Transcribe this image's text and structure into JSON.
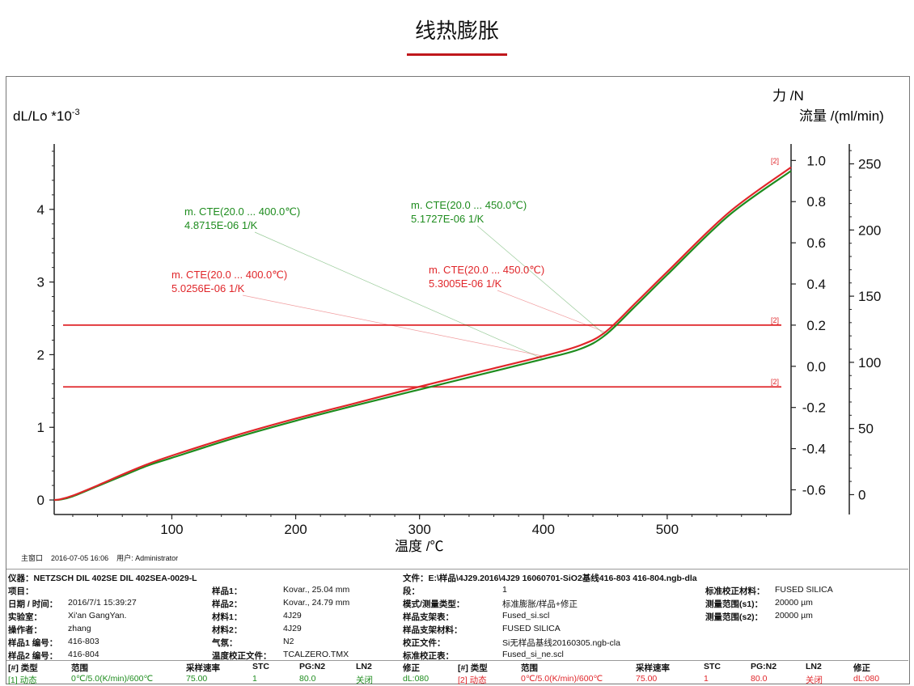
{
  "page": {
    "title": "线热膨胀"
  },
  "chart_data": {
    "type": "line",
    "ylabel_left": "dL/Lo *10",
    "ylabel_left_exp": "-3",
    "ylabel_right1": "力 /N",
    "ylabel_right2": "流量 /(ml/min)",
    "xlabel": "温度 /℃",
    "xlim": [
      5,
      600
    ],
    "ylim_left": [
      -0.2,
      4.9
    ],
    "ylim_force": [
      -0.72,
      1.08
    ],
    "ylim_flow": [
      -15,
      265
    ],
    "x_ticks": [
      "100",
      "200",
      "300",
      "400",
      "500"
    ],
    "y_ticks_left": [
      "0",
      "1",
      "2",
      "3",
      "4"
    ],
    "y_ticks_force": [
      "-0.6",
      "-0.4",
      "-0.2",
      "0.0",
      "0.2",
      "0.4",
      "0.6",
      "0.8",
      "1.0"
    ],
    "y_ticks_flow": [
      "0",
      "50",
      "100",
      "150",
      "200",
      "250"
    ],
    "grid": false,
    "series": [
      {
        "color": "#e0262a",
        "x": [
          5,
          10,
          20,
          40,
          60,
          80,
          100,
          150,
          200,
          250,
          300,
          350,
          400,
          430,
          450,
          475,
          500,
          550,
          600
        ],
        "y": [
          0,
          0.01,
          0.06,
          0.2,
          0.35,
          0.49,
          0.61,
          0.88,
          1.12,
          1.34,
          1.56,
          1.77,
          1.98,
          2.13,
          2.31,
          2.72,
          3.14,
          3.96,
          4.58
        ]
      },
      {
        "color": "#1e8c1e",
        "x": [
          5,
          10,
          20,
          40,
          60,
          80,
          100,
          150,
          200,
          250,
          300,
          350,
          400,
          430,
          450,
          475,
          500,
          550,
          600
        ],
        "y": [
          0,
          0.005,
          0.05,
          0.19,
          0.33,
          0.47,
          0.58,
          0.85,
          1.09,
          1.31,
          1.52,
          1.73,
          1.94,
          2.08,
          2.27,
          2.68,
          3.1,
          3.92,
          4.53
        ]
      }
    ],
    "horizontal_lines": [
      {
        "color": "#e0262a",
        "force": 0.2,
        "tag": "[2]"
      },
      {
        "color": "#e0262a",
        "force": -0.1,
        "tag": "[2]"
      }
    ],
    "curve_tag": "[2]",
    "annotations": [
      {
        "color": "#1e8c1e",
        "line1": "m. CTE(20.0 ... 400.0℃)",
        "line2": "4.8715E-06 1/K",
        "target_x": 400
      },
      {
        "color": "#1e8c1e",
        "line1": "m. CTE(20.0 ... 450.0℃)",
        "line2": "5.1727E-06 1/K",
        "target_x": 450
      },
      {
        "color": "#e0262a",
        "line1": "m. CTE(20.0 ... 400.0℃)",
        "line2": "5.0256E-06 1/K",
        "target_x": 400
      },
      {
        "color": "#e0262a",
        "line1": "m. CTE(20.0 ... 450.0℃)",
        "line2": "5.3005E-06 1/K",
        "target_x": 450
      }
    ]
  },
  "footer": {
    "window": "主窗口",
    "datetime": "2016-07-05 16:06",
    "user": "用户: Administrator",
    "instrument": "仪器：NETZSCH DIL 402SE DIL 402SEA-0029-L",
    "file": "文件：E:\\样品\\4J29.2016\\4J29 16060701-SiO2基线416-803 416-804.ngb-dla",
    "rows": [
      [
        "项目：",
        "",
        "样品1：",
        "Kovar., 25.04 mm",
        "段：",
        "1",
        "标准校正材料：",
        "FUSED SILICA"
      ],
      [
        "日期 / 时间：",
        "2016/7/1 15:39:27",
        "样品2：",
        "Kovar., 24.79 mm",
        "模式/测量类型：",
        "标准膨胀/样品+修正",
        "测量范围(s1)：",
        "20000 µm"
      ],
      [
        "实验室：",
        "Xi'an GangYan.",
        "材料1：",
        "4J29",
        "样品支架表：",
        "Fused_si.scl",
        "测量范围(s2)：",
        "20000 µm"
      ],
      [
        "操作者：",
        "zhang",
        "材料2：",
        "4J29",
        "样品支架材料：",
        "FUSED SILICA",
        "",
        ""
      ],
      [
        "样品1 编号：",
        "416-803",
        "气氛：",
        "N2",
        "校正文件：",
        "Si无样品基线20160305.ngb-cla",
        "",
        ""
      ],
      [
        "样品2 编号：",
        "416-804",
        "温度校正文件：",
        "TCALZERO.TMX",
        "标准校正表：",
        "Fused_si_ne.scl",
        "",
        ""
      ]
    ],
    "seg_headers": [
      "[#] 类型",
      "范围",
      "采样速率",
      "STC",
      "PG:N2",
      "LN2",
      "修正"
    ],
    "seg1": [
      "[1] 动态",
      "0℃/5.0(K/min)/600℃",
      "75.00",
      "1",
      "80.0",
      "关闭",
      "dL:080"
    ],
    "seg2": [
      "[2] 动态",
      "0℃/5.0(K/min)/600℃",
      "75.00",
      "1",
      "80.0",
      "关闭",
      "dL:080"
    ]
  }
}
